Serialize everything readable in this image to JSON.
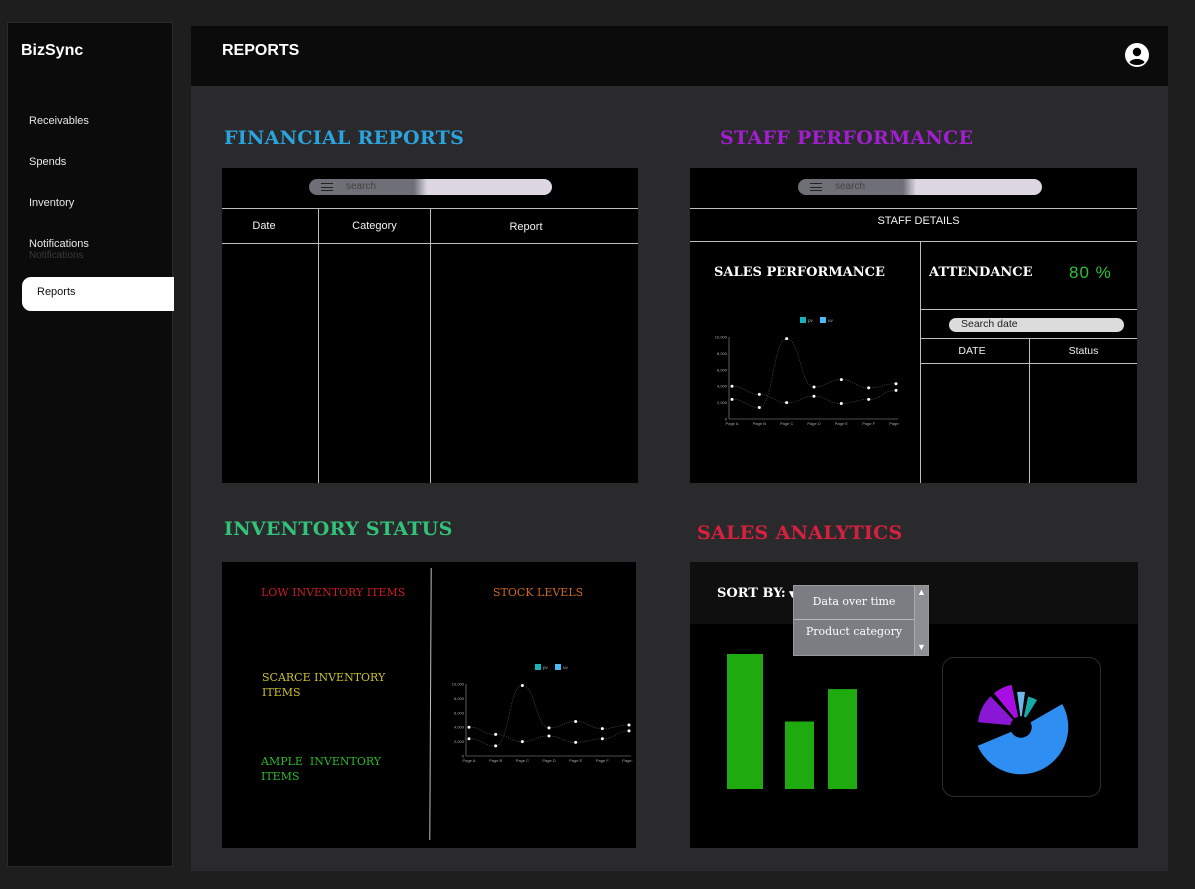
{
  "app": {
    "name": "BizSync"
  },
  "sidebar": {
    "items": [
      {
        "label": "Receivables"
      },
      {
        "label": "Spends"
      },
      {
        "label": "Inventory"
      },
      {
        "label": "Notifications"
      },
      {
        "label": "Reports"
      }
    ],
    "ghost_label": "Notifications"
  },
  "header": {
    "title": "REPORTS",
    "avatar_icon": "user-circle-icon"
  },
  "financial": {
    "title": "FINANCIAL REPORTS",
    "search_placeholder": "search",
    "columns": [
      "Date",
      "Category",
      "Report"
    ]
  },
  "staff": {
    "title": "STAFF PERFORMANCE",
    "search_placeholder": "search",
    "details_label": "STAFF DETAILS",
    "sales_label": "SALES PERFORMANCE",
    "attendance_label": "ATTENDANCE",
    "attendance_value": "80 %",
    "date_search_placeholder": "Search date",
    "columns": [
      "DATE",
      "Status"
    ]
  },
  "inventory": {
    "title": "INVENTORY STATUS",
    "low_label": "LOW INVENTORY ITEMS",
    "stock_label": "STOCK LEVELS",
    "scarce_label": "SCARCE INVENTORY ITEMS",
    "ample_label": "AMPLE  INVENTORY ITEMS"
  },
  "sales": {
    "title": "SALES ANALYTICS",
    "sort_label": "SORT BY:",
    "sort_options": [
      "Data over time",
      "Product category"
    ],
    "bar_values": [
      100,
      50,
      74
    ],
    "donut_slices": [
      {
        "value": 40,
        "color": "#2e8ef2"
      },
      {
        "value": 16,
        "color": "#8a17d6"
      },
      {
        "value": 11,
        "color": "#a80ee4"
      },
      {
        "value": 6,
        "color": "#6fb8ec"
      },
      {
        "value": 8,
        "color": "#18a9a9"
      }
    ]
  },
  "colors": {
    "financial": "#2ba3dc",
    "staff": "#a11fce",
    "inventory": "#33c27b",
    "sales": "#d5203f",
    "attendance_value": "#2fc13a",
    "low": "#c91d25",
    "stock": "#c9691d",
    "scarce": "#c9c12b",
    "ample": "#2db82d",
    "bar": "#1faa10"
  },
  "chart_data": [
    {
      "type": "line",
      "x": [
        "Page A",
        "Page B",
        "Page C",
        "Page D",
        "Page E",
        "Page F",
        "Page G"
      ],
      "series": [
        {
          "name": "pv",
          "values": [
            2400,
            1398,
            9800,
            3908,
            4800,
            3800,
            4300
          ]
        },
        {
          "name": "uv",
          "values": [
            4000,
            3000,
            2000,
            2780,
            1890,
            2390,
            3490
          ]
        }
      ],
      "yticks": [
        "0",
        "2,000",
        "4,000",
        "6,000",
        "8,000",
        "10,000"
      ],
      "ylim": [
        0,
        10000
      ],
      "legend": "top"
    },
    {
      "type": "line",
      "x": [
        "Page A",
        "Page B",
        "Page C",
        "Page D",
        "Page E",
        "Page F",
        "Page G"
      ],
      "series": [
        {
          "name": "pv",
          "values": [
            2400,
            1398,
            9800,
            3908,
            4800,
            3800,
            4300
          ]
        },
        {
          "name": "uv",
          "values": [
            4000,
            3000,
            2000,
            2780,
            1890,
            2390,
            3490
          ]
        }
      ],
      "yticks": [
        "0",
        "2,000",
        "4,000",
        "6,000",
        "8,000",
        "10,000"
      ],
      "ylim": [
        0,
        10000
      ],
      "legend": "top"
    }
  ]
}
